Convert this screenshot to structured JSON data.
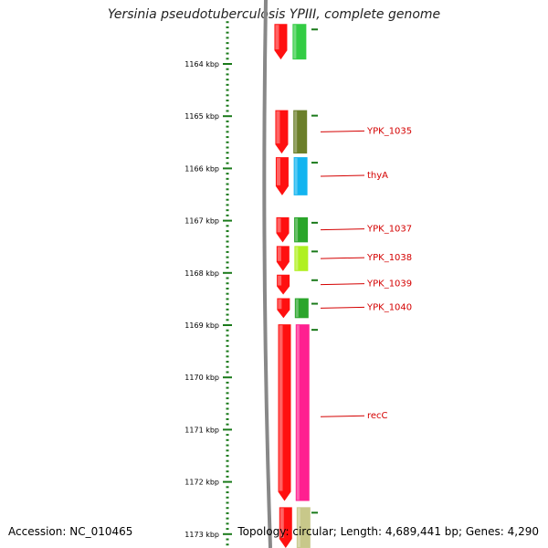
{
  "title": "Yersinia pseudotuberculosis YPIII, complete genome",
  "footer": {
    "accession": "Accession: NC_010465",
    "summary": "Topology: circular; Length: 4,689,441 bp; Genes: 4,290"
  },
  "colors": {
    "ruler": "#1a7a1a",
    "backbone": "#888888",
    "strand_red": "#ff1010",
    "label_red": "#d40000"
  },
  "chart_data": {
    "type": "genome-map",
    "axis": {
      "unit": "kbp",
      "range_kbp": [
        1163.2,
        1173.3
      ]
    },
    "ticks": [
      {
        "kbp": 1164,
        "label": "1164 kbp"
      },
      {
        "kbp": 1165,
        "label": "1165 kbp"
      },
      {
        "kbp": 1166,
        "label": "1166 kbp"
      },
      {
        "kbp": 1167,
        "label": "1167 kbp"
      },
      {
        "kbp": 1168,
        "label": "1168 kbp"
      },
      {
        "kbp": 1169,
        "label": "1169 kbp"
      },
      {
        "kbp": 1170,
        "label": "1170 kbp"
      },
      {
        "kbp": 1171,
        "label": "1171 kbp"
      },
      {
        "kbp": 1172,
        "label": "1172 kbp"
      },
      {
        "kbp": 1173,
        "label": "1173 kbp"
      }
    ],
    "genes": [
      {
        "start": 1163.2,
        "end": 1163.95,
        "feature_color": "#33cc44"
      },
      {
        "start": 1164.85,
        "end": 1165.75,
        "label": "YPK_1035",
        "feature_color": "#6b7f2a"
      },
      {
        "start": 1165.75,
        "end": 1166.55,
        "label": "thyA",
        "feature_color": "#12b4f0"
      },
      {
        "start": 1166.9,
        "end": 1167.45,
        "label": "YPK_1037",
        "feature_color": "#2aa52a"
      },
      {
        "start": 1167.45,
        "end": 1168.0,
        "label": "YPK_1038",
        "feature_color": "#b0f020"
      },
      {
        "start": 1168.0,
        "end": 1168.45,
        "label": "YPK_1039",
        "feature_color": null
      },
      {
        "start": 1168.45,
        "end": 1168.9,
        "label": "YPK_1040",
        "feature_color": "#2aa52a"
      },
      {
        "start": 1168.95,
        "end": 1172.4,
        "label": "recC",
        "feature_color": "#ff2090"
      },
      {
        "start": 1172.45,
        "end": 1173.3,
        "feature_color": "#c8c88a"
      }
    ]
  }
}
